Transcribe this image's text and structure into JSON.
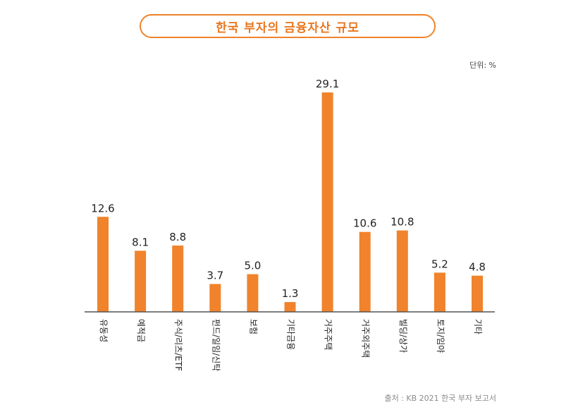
{
  "title": "한국 부자의 금융자산 규모",
  "unit": "단위: %",
  "source": "출처 : KB 2021 한국 부자 보고서",
  "colors": {
    "accent": "#f0832b",
    "title_text": "#e8771f",
    "axis": "#555555"
  },
  "chart_data": {
    "type": "bar",
    "title": "한국 부자의 금융자산 규모",
    "categories": [
      "유동성",
      "예적금",
      "주식/리츠/ETF",
      "펀드/일임/신탁",
      "보험",
      "기타금융",
      "거주주택",
      "거주외주택",
      "빌딩/상가",
      "토지/임야",
      "기타"
    ],
    "values": [
      12.6,
      8.1,
      8.8,
      3.7,
      5.0,
      1.3,
      29.1,
      10.6,
      10.8,
      5.2,
      4.8
    ],
    "value_labels": [
      "12.6",
      "8.1",
      "8.8",
      "3.7",
      "5.0",
      "1.3",
      "29.1",
      "10.6",
      "10.8",
      "5.2",
      "4.8"
    ],
    "xlabel": "",
    "ylabel": "",
    "ylim": [
      0,
      29.1
    ],
    "grid": false,
    "legend": "none"
  }
}
